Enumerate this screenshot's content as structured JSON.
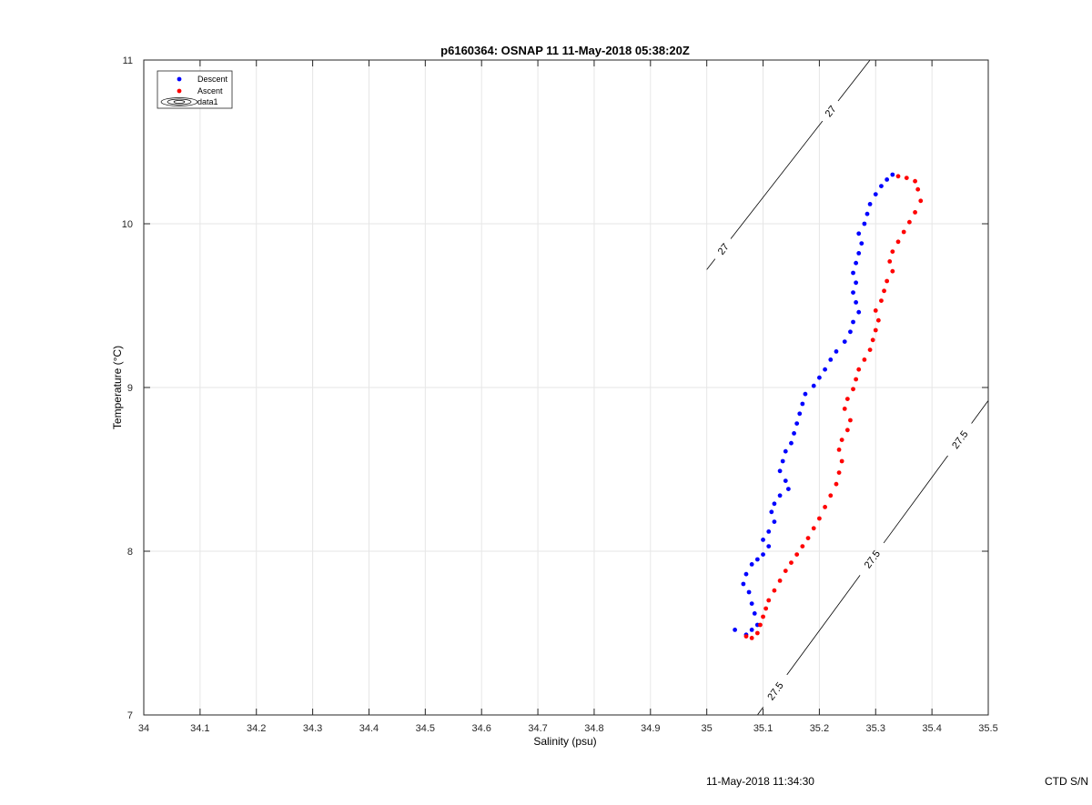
{
  "footer": {
    "timestamp": "11-May-2018 11:34:30",
    "ctd_label": "CTD S/N"
  },
  "chart_data": {
    "type": "scatter",
    "title": "p6160364: OSNAP 11 11-May-2018 05:38:20Z",
    "xlabel": "Salinity (psu)",
    "ylabel": "Temperature (°C)",
    "xlim": [
      34,
      35.5
    ],
    "ylim": [
      7,
      11
    ],
    "x_ticks": [
      "34",
      "34.1",
      "34.2",
      "34.3",
      "34.4",
      "34.5",
      "34.6",
      "34.7",
      "34.8",
      "34.9",
      "35",
      "35.1",
      "35.2",
      "35.3",
      "35.4",
      "35.5"
    ],
    "y_ticks": [
      "7",
      "8",
      "9",
      "10",
      "11"
    ],
    "grid": true,
    "legend_position": "top-left",
    "legend": [
      {
        "label": "Descent",
        "kind": "marker",
        "color": "#0000ff"
      },
      {
        "label": "Ascent",
        "kind": "marker",
        "color": "#ff0000"
      },
      {
        "label": "data1",
        "kind": "contour",
        "color": "#000000"
      }
    ],
    "series": [
      {
        "name": "Descent",
        "color": "#0000ff",
        "points": [
          [
            35.05,
            7.52
          ],
          [
            35.07,
            7.49
          ],
          [
            35.08,
            7.52
          ],
          [
            35.09,
            7.55
          ],
          [
            35.085,
            7.62
          ],
          [
            35.08,
            7.68
          ],
          [
            35.075,
            7.75
          ],
          [
            35.065,
            7.8
          ],
          [
            35.07,
            7.86
          ],
          [
            35.08,
            7.92
          ],
          [
            35.09,
            7.95
          ],
          [
            35.1,
            7.98
          ],
          [
            35.11,
            8.03
          ],
          [
            35.1,
            8.07
          ],
          [
            35.11,
            8.12
          ],
          [
            35.12,
            8.18
          ],
          [
            35.115,
            8.24
          ],
          [
            35.12,
            8.29
          ],
          [
            35.13,
            8.34
          ],
          [
            35.145,
            8.38
          ],
          [
            35.14,
            8.43
          ],
          [
            35.13,
            8.49
          ],
          [
            35.135,
            8.55
          ],
          [
            35.14,
            8.61
          ],
          [
            35.15,
            8.66
          ],
          [
            35.155,
            8.72
          ],
          [
            35.16,
            8.78
          ],
          [
            35.165,
            8.84
          ],
          [
            35.17,
            8.9
          ],
          [
            35.175,
            8.96
          ],
          [
            35.19,
            9.01
          ],
          [
            35.2,
            9.06
          ],
          [
            35.21,
            9.11
          ],
          [
            35.22,
            9.17
          ],
          [
            35.23,
            9.22
          ],
          [
            35.245,
            9.28
          ],
          [
            35.255,
            9.34
          ],
          [
            35.26,
            9.4
          ],
          [
            35.27,
            9.46
          ],
          [
            35.265,
            9.52
          ],
          [
            35.26,
            9.58
          ],
          [
            35.265,
            9.64
          ],
          [
            35.26,
            9.7
          ],
          [
            35.265,
            9.76
          ],
          [
            35.27,
            9.82
          ],
          [
            35.275,
            9.88
          ],
          [
            35.27,
            9.94
          ],
          [
            35.28,
            10.0
          ],
          [
            35.285,
            10.06
          ],
          [
            35.29,
            10.12
          ],
          [
            35.3,
            10.18
          ],
          [
            35.31,
            10.23
          ],
          [
            35.32,
            10.27
          ],
          [
            35.33,
            10.3
          ]
        ]
      },
      {
        "name": "Ascent",
        "color": "#ff0000",
        "points": [
          [
            35.07,
            7.48
          ],
          [
            35.08,
            7.47
          ],
          [
            35.09,
            7.5
          ],
          [
            35.095,
            7.55
          ],
          [
            35.1,
            7.6
          ],
          [
            35.105,
            7.65
          ],
          [
            35.11,
            7.7
          ],
          [
            35.12,
            7.76
          ],
          [
            35.13,
            7.82
          ],
          [
            35.14,
            7.88
          ],
          [
            35.15,
            7.93
          ],
          [
            35.16,
            7.98
          ],
          [
            35.17,
            8.03
          ],
          [
            35.18,
            8.08
          ],
          [
            35.19,
            8.14
          ],
          [
            35.2,
            8.2
          ],
          [
            35.21,
            8.27
          ],
          [
            35.22,
            8.34
          ],
          [
            35.23,
            8.41
          ],
          [
            35.235,
            8.48
          ],
          [
            35.24,
            8.55
          ],
          [
            35.235,
            8.62
          ],
          [
            35.24,
            8.68
          ],
          [
            35.25,
            8.74
          ],
          [
            35.255,
            8.8
          ],
          [
            35.245,
            8.87
          ],
          [
            35.25,
            8.93
          ],
          [
            35.26,
            8.99
          ],
          [
            35.265,
            9.05
          ],
          [
            35.27,
            9.11
          ],
          [
            35.28,
            9.17
          ],
          [
            35.29,
            9.23
          ],
          [
            35.295,
            9.29
          ],
          [
            35.3,
            9.35
          ],
          [
            35.305,
            9.41
          ],
          [
            35.3,
            9.47
          ],
          [
            35.31,
            9.53
          ],
          [
            35.315,
            9.59
          ],
          [
            35.32,
            9.65
          ],
          [
            35.33,
            9.71
          ],
          [
            35.325,
            9.77
          ],
          [
            35.33,
            9.83
          ],
          [
            35.34,
            9.89
          ],
          [
            35.35,
            9.95
          ],
          [
            35.36,
            10.01
          ],
          [
            35.37,
            10.07
          ],
          [
            35.38,
            10.14
          ],
          [
            35.375,
            10.21
          ],
          [
            35.37,
            10.26
          ],
          [
            35.355,
            10.28
          ],
          [
            35.34,
            10.29
          ]
        ]
      }
    ],
    "isopycnals": [
      {
        "label": "27",
        "x_range": [
          35.0,
          35.29
        ],
        "y_range": [
          9.72,
          11.0
        ],
        "label_positions": [
          [
            35.035,
            9.83
          ],
          [
            35.23,
            10.66
          ]
        ]
      },
      {
        "label": "27.5",
        "x_range": [
          35.09,
          35.5
        ],
        "y_range": [
          7.0,
          8.92
        ],
        "label_positions": [
          [
            35.12,
            7.15
          ],
          [
            35.29,
            7.96
          ],
          [
            35.45,
            8.68
          ]
        ]
      }
    ]
  }
}
